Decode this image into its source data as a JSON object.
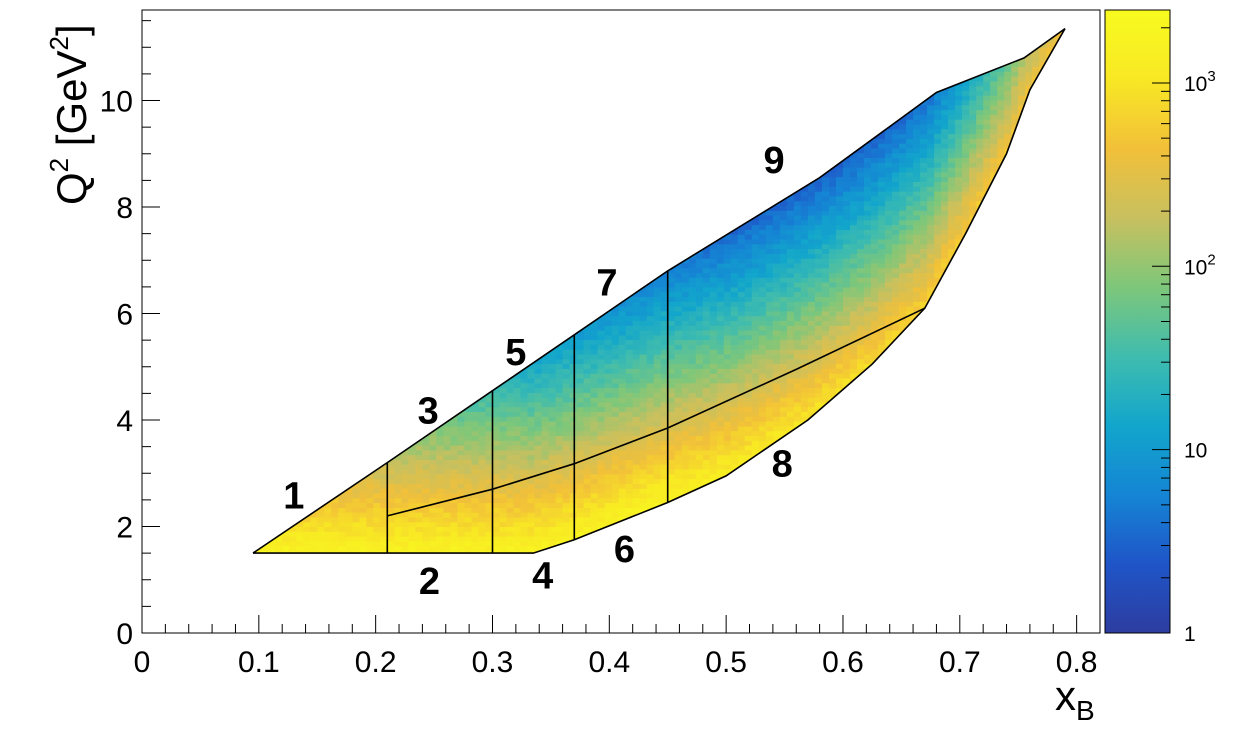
{
  "chart_data": {
    "type": "heatmap",
    "title": "",
    "xlabel": {
      "main": "x",
      "sub": "B"
    },
    "ylabel": {
      "main": "Q",
      "sup1": "2",
      "mid": " [GeV",
      "sup2": "2",
      "end": "]"
    },
    "xlim": [
      0,
      0.82
    ],
    "ylim": [
      0,
      11.7
    ],
    "x_ticks": [
      {
        "value": 0,
        "label": "0"
      },
      {
        "value": 0.1,
        "label": "0.1"
      },
      {
        "value": 0.2,
        "label": "0.2"
      },
      {
        "value": 0.3,
        "label": "0.3"
      },
      {
        "value": 0.4,
        "label": "0.4"
      },
      {
        "value": 0.5,
        "label": "0.5"
      },
      {
        "value": 0.6,
        "label": "0.6"
      },
      {
        "value": 0.7,
        "label": "0.7"
      },
      {
        "value": 0.8,
        "label": "0.8"
      }
    ],
    "y_ticks": [
      {
        "value": 0,
        "label": "0"
      },
      {
        "value": 2,
        "label": "2"
      },
      {
        "value": 4,
        "label": "4"
      },
      {
        "value": 6,
        "label": "6"
      },
      {
        "value": 8,
        "label": "8"
      },
      {
        "value": 10,
        "label": "10"
      }
    ],
    "colorbar": {
      "scale": "log",
      "range": [
        1,
        2500
      ],
      "ticks": [
        {
          "value": 1,
          "label": "1"
        },
        {
          "value": 10,
          "label": "10"
        },
        {
          "value": 100,
          "base": "10",
          "exp": "2"
        },
        {
          "value": 1000,
          "base": "10",
          "exp": "3"
        }
      ],
      "colors": [
        "#2d3da0",
        "#1f55c8",
        "#1585d4",
        "#12a6cc",
        "#3fbcae",
        "#7ec77a",
        "#c8c05f",
        "#f2c039",
        "#f8e824",
        "#f8fb1f"
      ]
    },
    "boundary": [
      [
        0.095,
        1.5
      ],
      [
        0.335,
        1.5
      ],
      [
        0.37,
        1.75
      ],
      [
        0.45,
        2.45
      ],
      [
        0.5,
        2.95
      ],
      [
        0.57,
        4.0
      ],
      [
        0.625,
        5.05
      ],
      [
        0.67,
        6.1
      ],
      [
        0.705,
        7.5
      ],
      [
        0.74,
        9.0
      ],
      [
        0.76,
        10.2
      ],
      [
        0.79,
        11.35
      ],
      [
        0.755,
        10.8
      ],
      [
        0.68,
        10.15
      ],
      [
        0.58,
        8.55
      ],
      [
        0.45,
        6.8
      ],
      [
        0.37,
        5.6
      ],
      [
        0.3,
        4.55
      ],
      [
        0.21,
        3.2
      ],
      [
        0.095,
        1.5
      ]
    ],
    "bin_lines": [
      [
        [
          0.21,
          1.5
        ],
        [
          0.21,
          3.2
        ]
      ],
      [
        [
          0.3,
          1.5
        ],
        [
          0.3,
          4.55
        ]
      ],
      [
        [
          0.37,
          1.75
        ],
        [
          0.37,
          5.6
        ]
      ],
      [
        [
          0.45,
          2.45
        ],
        [
          0.45,
          6.8
        ]
      ],
      [
        [
          0.21,
          2.2
        ],
        [
          0.3,
          2.7
        ],
        [
          0.37,
          3.18
        ],
        [
          0.45,
          3.85
        ],
        [
          0.56,
          4.95
        ],
        [
          0.67,
          6.1
        ]
      ]
    ],
    "bin_labels": [
      {
        "label": "1",
        "x": 0.13,
        "y": 2.6
      },
      {
        "label": "2",
        "x": 0.246,
        "y": 1.0
      },
      {
        "label": "3",
        "x": 0.245,
        "y": 4.2
      },
      {
        "label": "4",
        "x": 0.343,
        "y": 1.1
      },
      {
        "label": "5",
        "x": 0.32,
        "y": 5.3
      },
      {
        "label": "6",
        "x": 0.413,
        "y": 1.6
      },
      {
        "label": "7",
        "x": 0.398,
        "y": 6.6
      },
      {
        "label": "8",
        "x": 0.548,
        "y": 3.2
      },
      {
        "label": "9",
        "x": 0.541,
        "y": 8.9
      }
    ]
  }
}
